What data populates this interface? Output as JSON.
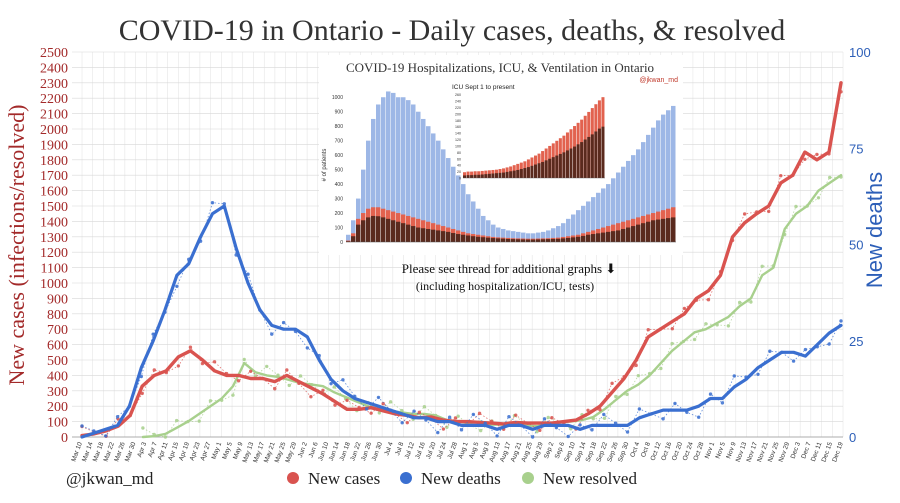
{
  "colors": {
    "cases": "#d9534f",
    "deaths": "#3a6fd0",
    "resolved": "#a8d08d",
    "left_axis": "#a32a2a",
    "right_axis": "#2d5fb8",
    "grid": "#d8d8d8",
    "inset_blue": "#9db7e6",
    "inset_red": "#e2624f",
    "inset_dark": "#5a2a1e"
  },
  "chart_data": {
    "type": "line",
    "title": "COVID-19 in Ontario - Daily cases, deaths, & resolved",
    "ylabel_left": "New cases (infections/resolved)",
    "ylabel_right": "New deaths",
    "ylim_left": [
      0,
      2500
    ],
    "ylim_right": [
      0,
      100
    ],
    "yticks_left": [
      0,
      100,
      200,
      300,
      400,
      500,
      600,
      700,
      800,
      900,
      1000,
      1100,
      1200,
      1300,
      1400,
      1500,
      1600,
      1700,
      1800,
      1900,
      2000,
      2100,
      2200,
      2300,
      2400,
      2500
    ],
    "yticks_right": [
      0,
      25,
      50,
      75,
      100
    ],
    "x_tick_labels": [
      "Mar 10",
      "Mar 14",
      "Mar 18",
      "Mar 22",
      "Mar 26",
      "Mar 30",
      "Apr 3",
      "Apr 7",
      "Apr 11",
      "Apr 15",
      "Apr 19",
      "Apr 23",
      "Apr 27",
      "May 1",
      "May 5",
      "May 9",
      "May 13",
      "May 17",
      "May 21",
      "May 25",
      "May 29",
      "Jun 2",
      "Jun 6",
      "Jun 10",
      "Jun 14",
      "Jun 18",
      "Jun 22",
      "Jun 26",
      "Jun 30",
      "Jul 4",
      "Jul 8",
      "Jul 12",
      "Jul 16",
      "Jul 20",
      "Jul 24",
      "Jul 28",
      "Aug 1",
      "Aug 5",
      "Aug 9",
      "Aug 13",
      "Aug 17",
      "Aug 21",
      "Aug 25",
      "Aug 29",
      "Sep 2",
      "Sep 6",
      "Sep 10",
      "Sep 14",
      "Sep 18",
      "Sep 22",
      "Sep 26",
      "Sep 30",
      "Oct 4",
      "Oct 8",
      "Oct 12",
      "Oct 16",
      "Oct 20",
      "Oct 24",
      "Oct 28",
      "Nov 1",
      "Nov 5",
      "Nov 9",
      "Nov 13",
      "Nov 17",
      "Nov 21",
      "Nov 25",
      "Nov 29",
      "Dec 3",
      "Dec 7",
      "Dec 11",
      "Dec 15",
      "Dec 19"
    ],
    "legend_position": "bottom",
    "handle": "@jkwan_md",
    "series": [
      {
        "name": "New cases",
        "axis": "left",
        "values": [
          10,
          20,
          40,
          70,
          140,
          330,
          400,
          430,
          520,
          560,
          500,
          430,
          400,
          400,
          380,
          380,
          360,
          400,
          360,
          320,
          280,
          230,
          180,
          180,
          190,
          170,
          150,
          140,
          125,
          130,
          110,
          100,
          100,
          95,
          90,
          85,
          95,
          90,
          90,
          90,
          100,
          110,
          150,
          200,
          290,
          380,
          500,
          650,
          700,
          750,
          800,
          900,
          950,
          1050,
          1300,
          1390,
          1450,
          1500,
          1650,
          1700,
          1850,
          1800,
          1850,
          2300
        ]
      },
      {
        "name": "New deaths",
        "axis": "right",
        "values": [
          0,
          1,
          2,
          3,
          8,
          18,
          25,
          33,
          42,
          45,
          52,
          58,
          60,
          49,
          40,
          33,
          29,
          28,
          28,
          26,
          20,
          15,
          12,
          10,
          9,
          8,
          7,
          6,
          5,
          5,
          4,
          4,
          3,
          3,
          3,
          2,
          3,
          3,
          2,
          3,
          3,
          3,
          2,
          3,
          3,
          3,
          3,
          5,
          6,
          7,
          7,
          7,
          8,
          10,
          10,
          13,
          15,
          18,
          20,
          22,
          22,
          21,
          24,
          27,
          29
        ]
      },
      {
        "name": "New resolved",
        "axis": "right_none",
        "values": [
          0,
          5,
          20,
          60,
          100,
          150,
          200,
          250,
          330,
          480,
          420,
          400,
          390,
          370,
          350,
          340,
          330,
          290,
          260,
          230,
          200,
          180,
          170,
          160,
          150,
          150,
          140,
          110,
          100,
          90,
          100,
          80,
          80,
          80,
          75,
          70,
          80,
          95,
          100,
          110,
          130,
          180,
          240,
          300,
          340,
          400,
          480,
          560,
          620,
          680,
          700,
          740,
          780,
          850,
          900,
          1050,
          1100,
          1350,
          1450,
          1500,
          1600,
          1650,
          1700
        ]
      }
    ]
  },
  "inset": {
    "title": "COVID-19 Hospitalizations, ICU, & Ventilation in Ontario",
    "handle": "@jkwan_md",
    "ylabel": "# of patients",
    "yticks": [
      "0",
      "100",
      "200",
      "300",
      "400",
      "500",
      "600",
      "700",
      "800",
      "900",
      "1000"
    ],
    "values_hosp": [
      50,
      150,
      300,
      500,
      700,
      850,
      950,
      1000,
      1040,
      1030,
      1000,
      1000,
      980,
      950,
      900,
      850,
      800,
      750,
      700,
      640,
      580,
      520,
      460,
      400,
      330,
      280,
      230,
      180,
      150,
      120,
      100,
      90,
      80,
      75,
      70,
      65,
      60,
      60,
      65,
      70,
      80,
      95,
      110,
      130,
      160,
      190,
      220,
      250,
      280,
      310,
      340,
      370,
      400,
      440,
      480,
      520,
      560,
      600,
      640,
      690,
      740,
      790,
      840,
      880,
      910,
      940
    ],
    "values_icu": [
      10,
      60,
      160,
      200,
      230,
      240,
      240,
      230,
      220,
      210,
      200,
      190,
      180,
      170,
      160,
      150,
      140,
      130,
      120,
      110,
      100,
      90,
      80,
      70,
      60,
      55,
      50,
      45,
      40,
      35,
      32,
      30,
      28,
      26,
      25,
      24,
      23,
      23,
      24,
      25,
      26,
      28,
      30,
      35,
      40,
      45,
      50,
      60,
      70,
      80,
      90,
      100,
      110,
      120,
      130,
      140,
      150,
      160,
      170,
      180,
      190,
      200,
      210,
      220,
      230,
      240
    ],
    "values_vent": [
      5,
      40,
      120,
      150,
      170,
      180,
      178,
      170,
      160,
      150,
      140,
      130,
      120,
      110,
      100,
      95,
      90,
      85,
      80,
      75,
      70,
      62,
      55,
      50,
      45,
      40,
      36,
      33,
      30,
      27,
      25,
      23,
      21,
      20,
      19,
      18,
      17,
      17,
      18,
      19,
      20,
      21,
      22,
      25,
      28,
      32,
      36,
      42,
      50,
      55,
      60,
      65,
      70,
      75,
      80,
      90,
      100,
      110,
      120,
      130,
      140,
      150,
      155,
      160,
      165,
      170
    ],
    "sub": {
      "title": "ICU Sept 1 to present",
      "yticks": [
        "0",
        "20",
        "40",
        "60",
        "80",
        "100",
        "120",
        "140",
        "160",
        "180",
        "200",
        "220",
        "240",
        "260"
      ],
      "values_icu": [
        18,
        20,
        20,
        21,
        21,
        22,
        23,
        24,
        25,
        26,
        28,
        30,
        33,
        36,
        40,
        44,
        48,
        52,
        58,
        64,
        70,
        76,
        84,
        92,
        100,
        108,
        116,
        124,
        132,
        142,
        152,
        162,
        172,
        182,
        194,
        206,
        218,
        230,
        242,
        252
      ],
      "values_vent": [
        8,
        9,
        9,
        10,
        10,
        11,
        12,
        13,
        14,
        15,
        16,
        17,
        19,
        21,
        23,
        25,
        28,
        31,
        34,
        38,
        42,
        46,
        50,
        55,
        60,
        65,
        70,
        75,
        80,
        86,
        92,
        98,
        105,
        112,
        120,
        128,
        136,
        145,
        154,
        160
      ]
    }
  },
  "annotation": {
    "line1": "Please see thread for additional graphs ⬇",
    "line2": "(including hospitalization/ICU, tests)"
  },
  "legend": {
    "handle": "@jkwan_md",
    "items": [
      {
        "label": "New cases",
        "color": "#d9534f"
      },
      {
        "label": "New deaths",
        "color": "#3a6fd0"
      },
      {
        "label": "New resolved",
        "color": "#a8d08d"
      }
    ]
  }
}
